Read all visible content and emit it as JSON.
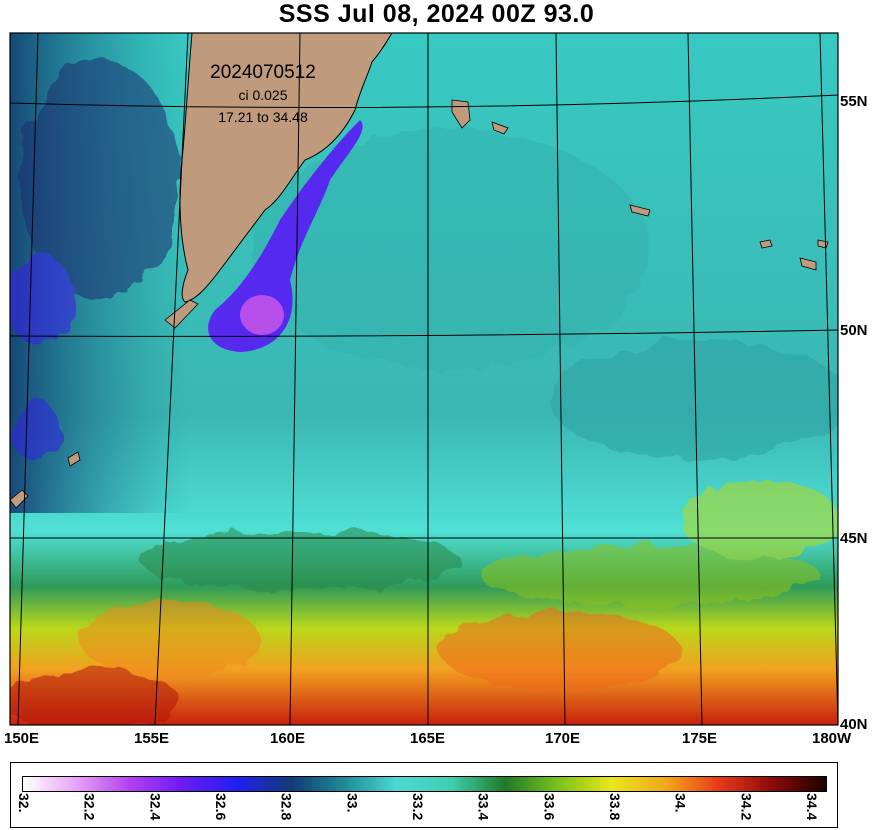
{
  "title": "SSS Jul 08, 2024 00Z 93.0",
  "info": {
    "run_id": "2024070512",
    "contour_interval": "ci 0.025",
    "range": "17.21 to 34.48"
  },
  "map": {
    "region": "Northwest Pacific",
    "lon_labels": [
      "150E",
      "155E",
      "160E",
      "165E",
      "170E",
      "175E",
      "180W"
    ],
    "lat_labels": [
      "55N",
      "50N",
      "45N",
      "40N"
    ],
    "colors": {
      "land": "#c09a7c",
      "low_salinity": "#3a1ff0",
      "mid_salinity": "#4fd6cf",
      "high_salinity": "#e0502a",
      "grid": "#000000"
    }
  },
  "colorbar": {
    "tick_labels": [
      "32.",
      "32.2",
      "32.4",
      "32.6",
      "32.8",
      "33.",
      "33.2",
      "33.4",
      "33.6",
      "33.8",
      "34.",
      "34.2",
      "34.4"
    ],
    "stops": [
      "#ffffff",
      "#e6a3f5",
      "#b340f0",
      "#6a1af5",
      "#2020f0",
      "#123a78",
      "#1f8a98",
      "#4cd9d6",
      "#3fcfb0",
      "#1f7a28",
      "#7ac21a",
      "#e8e81a",
      "#f0a81a",
      "#e83a1a",
      "#8a0a0a",
      "#200000"
    ]
  }
}
